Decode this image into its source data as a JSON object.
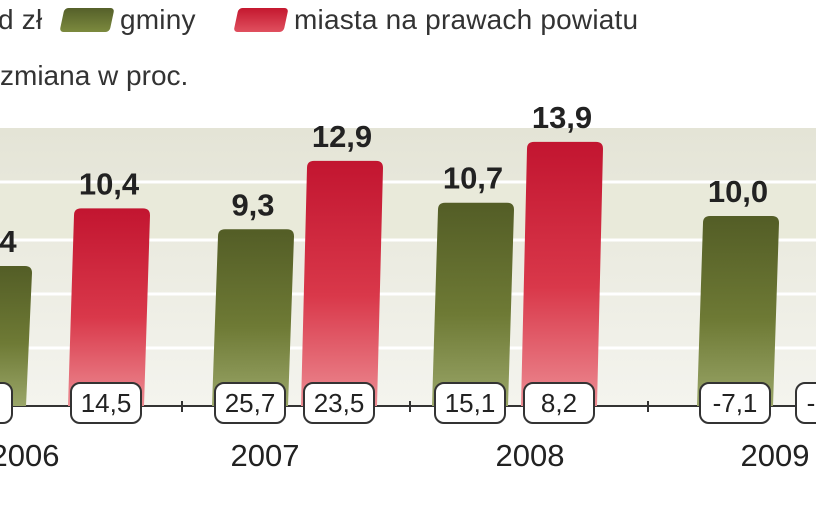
{
  "legend": {
    "unit_fragment": "d zł",
    "series_a_label": "gminy",
    "series_b_label": "miasta na prawach powiatu"
  },
  "subtitle": "zmiana w proc.",
  "colors": {
    "series_a": "#6e7a35",
    "series_b": "#d8283d",
    "band": "#e9ead9"
  },
  "chart_data": {
    "type": "bar",
    "categories": [
      "2006",
      "2007",
      "2008",
      "2009"
    ],
    "series": [
      {
        "name": "gminy",
        "values": [
          null,
          9.3,
          10.7,
          10.0
        ],
        "value_labels": [
          "4",
          "9,3",
          "10,7",
          "10,0"
        ],
        "change_labels": [
          "",
          "25,7",
          "15,1",
          "-7,1"
        ]
      },
      {
        "name": "miasta na prawach powiatu",
        "values": [
          10.4,
          12.9,
          13.9,
          null
        ],
        "value_labels": [
          "10,4",
          "12,9",
          "13,9",
          ""
        ],
        "change_labels": [
          "14,5",
          "23,5",
          "8,2",
          "-"
        ]
      }
    ],
    "grid": true,
    "legend_position": "top"
  }
}
